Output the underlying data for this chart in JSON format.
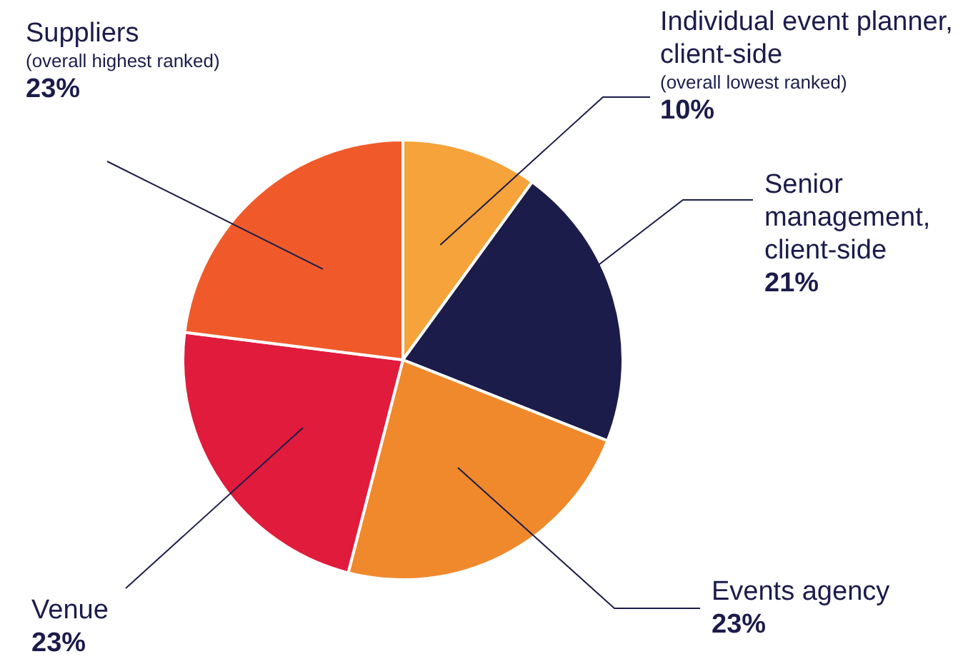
{
  "chart_data": {
    "type": "pie",
    "categories": [
      "Individual event planner, client-side",
      "Senior management, client-side",
      "Events agency",
      "Venue",
      "Suppliers"
    ],
    "values": [
      10,
      21,
      23,
      23,
      23
    ],
    "value_labels": [
      "10%",
      "21%",
      "23%",
      "23%",
      "23%"
    ],
    "colors": [
      "#f5a33a",
      "#1b1c4a",
      "#f0892c",
      "#e01b3c",
      "#f05a2a"
    ],
    "annotations": [
      {
        "text": "(overall lowest ranked)",
        "x": "Individual event planner, client-side"
      },
      {
        "text": "(overall highest ranked)",
        "x": "Suppliers"
      }
    ],
    "legend": false
  }
}
